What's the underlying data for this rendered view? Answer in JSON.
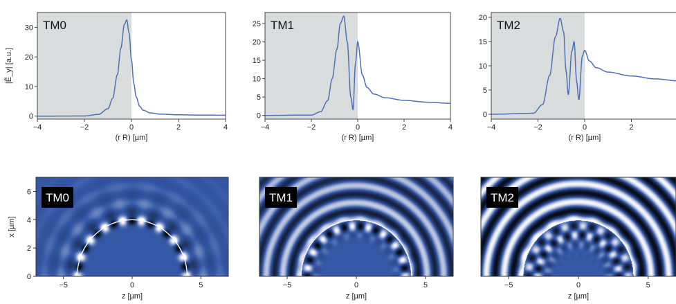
{
  "chart_data": [
    {
      "type": "line",
      "mode_label": "TM0",
      "ylabel": "|Ẽ_y| [a.u.]",
      "xlabel": "(r  R)  [µm]",
      "xlim": [
        -4,
        4
      ],
      "ylim": [
        -1,
        35
      ],
      "xticks": [
        -4,
        -2,
        0,
        2,
        4
      ],
      "yticks": [
        0,
        10,
        20,
        30
      ],
      "shaded_region": [
        -4,
        0
      ],
      "series": [
        {
          "x": [
            -4,
            -2,
            -1.4,
            -1.0,
            -0.8,
            -0.6,
            -0.45,
            -0.3,
            -0.2,
            -0.1,
            0,
            0.1,
            0.2,
            0.35,
            0.5,
            0.8,
            1.2,
            2,
            3,
            4
          ],
          "values": [
            0,
            0.05,
            0.6,
            2.5,
            6,
            14,
            23,
            31,
            32.5,
            28,
            19,
            11,
            6.5,
            3.3,
            2,
            1.1,
            0.7,
            0.45,
            0.35,
            0.3
          ]
        }
      ]
    },
    {
      "type": "line",
      "mode_label": "TM1",
      "ylabel": "",
      "xlabel": "(r  R)  [µm]",
      "xlim": [
        -4,
        4
      ],
      "ylim": [
        -1,
        28
      ],
      "xticks": [
        -4,
        -2,
        0,
        2,
        4
      ],
      "yticks": [
        0,
        5,
        10,
        15,
        20,
        25
      ],
      "shaded_region": [
        -4,
        0
      ],
      "series": [
        {
          "x": [
            -4,
            -2,
            -1.6,
            -1.3,
            -1.1,
            -0.9,
            -0.75,
            -0.6,
            -0.45,
            -0.3,
            -0.2,
            -0.1,
            0,
            0.2,
            0.4,
            0.7,
            1.2,
            2,
            3,
            4
          ],
          "values": [
            0,
            0.1,
            1,
            4,
            10,
            18,
            25,
            27,
            20,
            5,
            1.5,
            14,
            20,
            11,
            7.6,
            5.8,
            4.8,
            4.1,
            3.6,
            3.3
          ]
        }
      ]
    },
    {
      "type": "line",
      "mode_label": "TM2",
      "ylabel": "",
      "xlabel": "(r  R)  [µm]",
      "xlim": [
        -4,
        4
      ],
      "ylim": [
        -1,
        21
      ],
      "xticks": [
        -4,
        -2,
        0,
        2
      ],
      "yticks": [
        0,
        5,
        10,
        15,
        20
      ],
      "shaded_region": [
        -4,
        0
      ],
      "series": [
        {
          "x": [
            -4,
            -2.2,
            -1.8,
            -1.5,
            -1.25,
            -1.05,
            -0.9,
            -0.8,
            -0.7,
            -0.55,
            -0.45,
            -0.35,
            -0.25,
            -0.1,
            0,
            0.2,
            0.5,
            1,
            2,
            3,
            4
          ],
          "values": [
            0,
            0.2,
            2,
            8,
            16,
            19.8,
            17,
            9,
            4,
            13,
            15,
            7,
            3,
            12,
            13.2,
            11,
            9.6,
            8.7,
            7.9,
            7.3,
            6.9
          ]
        }
      ]
    },
    {
      "type": "heatmap",
      "mode_label": "TM0",
      "xlabel": "z [µm]",
      "ylabel": "x [µm]",
      "xlim": [
        -7,
        7
      ],
      "ylim": [
        0,
        7
      ],
      "xticks": [
        -5,
        0,
        5
      ],
      "yticks": [
        0,
        2,
        4,
        6
      ],
      "boundary_radius": 4
    },
    {
      "type": "heatmap",
      "mode_label": "TM1",
      "xlabel": "z [µm]",
      "ylabel": "",
      "xlim": [
        -7,
        7
      ],
      "ylim": [
        0,
        7
      ],
      "xticks": [
        -5,
        0,
        5
      ],
      "yticks": [],
      "boundary_radius": 4
    },
    {
      "type": "heatmap",
      "mode_label": "TM2",
      "xlabel": "z [µm]",
      "ylabel": "",
      "xlim": [
        -7,
        7
      ],
      "ylim": [
        0,
        7
      ],
      "xticks": [
        -5,
        0,
        5
      ],
      "yticks": [],
      "boundary_radius": 4
    }
  ],
  "colors": {
    "line": "#4f6fb4",
    "shade": "#d9dcdd",
    "field_base": "#3558a6",
    "field_dark": "#050a14",
    "field_light": "#ffffff",
    "boundary": "#ffffff",
    "label_bg": "#000000"
  }
}
